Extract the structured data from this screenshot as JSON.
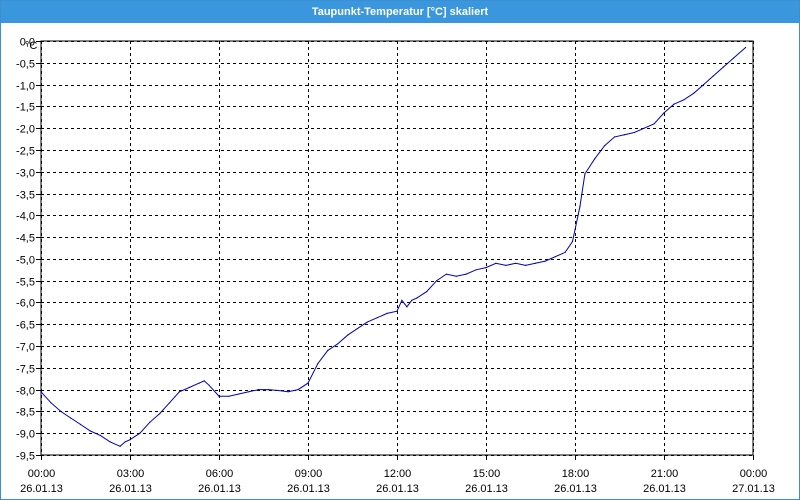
{
  "window": {
    "title": "Taupunkt-Temperatur [°C] skaliert"
  },
  "colors": {
    "titlebar": "#3a96dd",
    "series": "#0000c0",
    "grid": "#000000"
  },
  "chart_data": {
    "type": "line",
    "title": "Taupunkt-Temperatur [°C] skaliert",
    "ylabel": "°C",
    "ylim": [
      -9.5,
      0.0
    ],
    "xlim_hours": [
      0,
      24
    ],
    "grid": true,
    "y_ticks": [
      "0,0",
      "-0,5",
      "-1,0",
      "-1,5",
      "-2,0",
      "-2,5",
      "-3,0",
      "-3,5",
      "-4,0",
      "-4,5",
      "-5,0",
      "-5,5",
      "-6,0",
      "-6,5",
      "-7,0",
      "-7,5",
      "-8,0",
      "-8,5",
      "-9,0",
      "-9,5"
    ],
    "x_ticks": [
      {
        "time": "00:00",
        "date": "26.01.13"
      },
      {
        "time": "03:00",
        "date": "26.01.13"
      },
      {
        "time": "06:00",
        "date": "26.01.13"
      },
      {
        "time": "09:00",
        "date": "26.01.13"
      },
      {
        "time": "12:00",
        "date": "26.01.13"
      },
      {
        "time": "15:00",
        "date": "26.01.13"
      },
      {
        "time": "18:00",
        "date": "26.01.13"
      },
      {
        "time": "21:00",
        "date": "26.01.13"
      },
      {
        "time": "00:00",
        "date": "27.01.13"
      }
    ],
    "series": [
      {
        "x": [
          "00:00",
          "00:20",
          "00:40",
          "01:00",
          "01:20",
          "01:40",
          "02:00",
          "02:20",
          "02:40",
          "02:50",
          "03:00",
          "03:20",
          "03:40",
          "04:00",
          "04:20",
          "04:40",
          "05:00",
          "05:20",
          "05:30",
          "05:40",
          "06:00",
          "06:20",
          "06:40",
          "07:00",
          "07:20",
          "07:40",
          "08:00",
          "08:20",
          "08:40",
          "09:00",
          "09:20",
          "09:40",
          "10:00",
          "10:20",
          "10:40",
          "11:00",
          "11:20",
          "11:40",
          "12:00",
          "12:10",
          "12:20",
          "12:30",
          "12:40",
          "13:00",
          "13:20",
          "13:40",
          "14:00",
          "14:20",
          "14:40",
          "15:00",
          "15:20",
          "15:40",
          "16:00",
          "16:20",
          "16:40",
          "17:00",
          "17:20",
          "17:40",
          "17:55",
          "18:10",
          "18:20",
          "18:40",
          "19:00",
          "19:20",
          "19:40",
          "20:00",
          "20:20",
          "20:40",
          "21:00",
          "21:20",
          "21:40",
          "22:00",
          "22:20",
          "22:40",
          "23:00",
          "23:20",
          "23:45"
        ],
        "y": [
          -8.05,
          -8.3,
          -8.5,
          -8.65,
          -8.8,
          -8.95,
          -9.05,
          -9.2,
          -9.3,
          -9.2,
          -9.15,
          -9.0,
          -8.75,
          -8.55,
          -8.3,
          -8.05,
          -7.95,
          -7.85,
          -7.8,
          -7.9,
          -8.15,
          -8.15,
          -8.1,
          -8.05,
          -8.0,
          -8.0,
          -8.02,
          -8.05,
          -8.0,
          -7.85,
          -7.4,
          -7.1,
          -6.95,
          -6.75,
          -6.6,
          -6.45,
          -6.35,
          -6.25,
          -6.2,
          -5.95,
          -6.1,
          -5.95,
          -5.9,
          -5.75,
          -5.5,
          -5.35,
          -5.4,
          -5.35,
          -5.25,
          -5.2,
          -5.1,
          -5.15,
          -5.1,
          -5.15,
          -5.1,
          -5.05,
          -4.95,
          -4.85,
          -4.6,
          -3.8,
          -3.05,
          -2.7,
          -2.4,
          -2.2,
          -2.15,
          -2.1,
          -2.0,
          -1.9,
          -1.65,
          -1.45,
          -1.35,
          -1.2,
          -1.0,
          -0.8,
          -0.6,
          -0.4,
          -0.15
        ]
      }
    ]
  }
}
